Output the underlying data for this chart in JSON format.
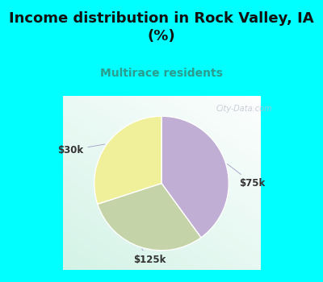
{
  "title": "Income distribution in Rock Valley, IA\n(%)",
  "subtitle": "Multirace residents",
  "title_color": "#111111",
  "subtitle_color": "#2a9d8f",
  "bg_color_top": "#00ffff",
  "slices": [
    {
      "label": "$30k",
      "value": 30,
      "color": "#f0f09a"
    },
    {
      "label": "$75k",
      "value": 40,
      "color": "#c0aed4"
    },
    {
      "label": "$125k",
      "value": 30,
      "color": "#c5d4a8"
    }
  ],
  "label_fontsize": 8.5,
  "title_fontsize": 13,
  "subtitle_fontsize": 10,
  "wedge_linewidth": 1.0,
  "wedge_edgecolor": "#ffffff",
  "startangle": 90,
  "label_color": "#333333",
  "watermark": "City-Data.com"
}
